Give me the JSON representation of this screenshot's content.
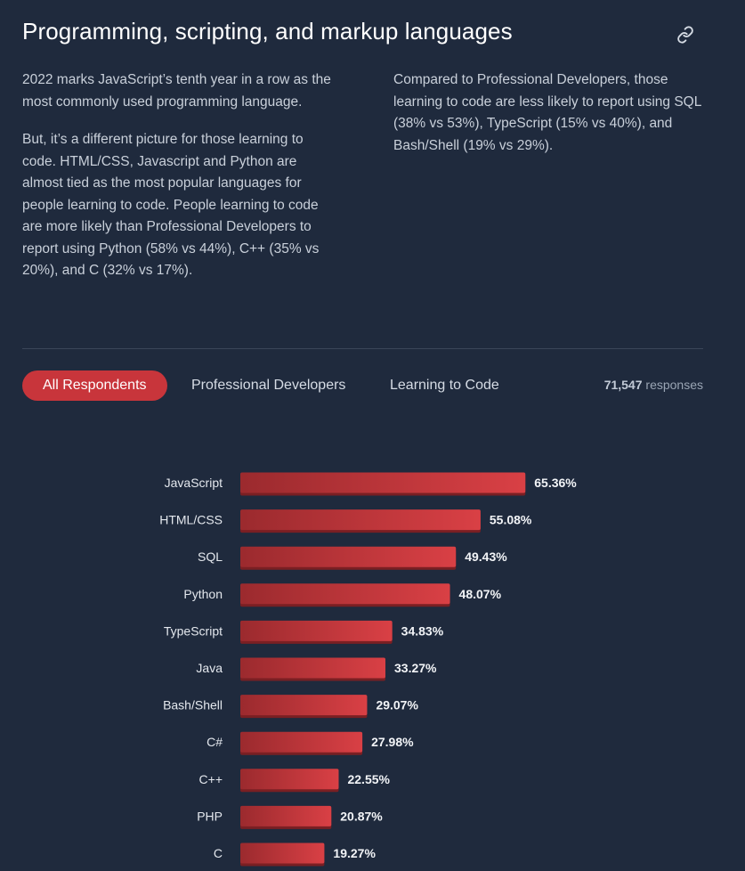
{
  "header": {
    "title": "Programming, scripting, and markup languages"
  },
  "intro": {
    "left_p1": "2022 marks JavaScript’s tenth year in a row as the most commonly used programming language.",
    "left_p2": "But, it’s a different picture for those learning to code. HTML/CSS, Javascript and Python are almost tied as the most popular languages for people learning to code. People learning to code are more likely than Professional Developers to report using Python (58% vs 44%), C++ (35% vs 20%), and C (32% vs 17%).",
    "right_p1": "Compared to Professional Developers, those learning to code are less likely to report using SQL (38% vs 53%), TypeScript (15% vs 40%), and Bash/Shell (19% vs 29%)."
  },
  "tabs": [
    {
      "label": "All Respondents",
      "active": true
    },
    {
      "label": "Professional Developers",
      "active": false
    },
    {
      "label": "Learning to Code",
      "active": false
    }
  ],
  "responses": {
    "count": "71,547",
    "label": "responses"
  },
  "colors": {
    "accent": "#c8353b",
    "bar_start": "#9b2a2e",
    "bar_end": "#d94045",
    "background": "#1f2a3d"
  },
  "chart_data": {
    "type": "bar",
    "orientation": "horizontal",
    "categories": [
      "JavaScript",
      "HTML/CSS",
      "SQL",
      "Python",
      "TypeScript",
      "Java",
      "Bash/Shell",
      "C#",
      "C++",
      "PHP",
      "C"
    ],
    "values": [
      65.36,
      55.08,
      49.43,
      48.07,
      34.83,
      33.27,
      29.07,
      27.98,
      22.55,
      20.87,
      19.27
    ],
    "value_labels": [
      "65.36%",
      "55.08%",
      "49.43%",
      "48.07%",
      "34.83%",
      "33.27%",
      "29.07%",
      "27.98%",
      "22.55%",
      "20.87%",
      "19.27%"
    ],
    "xlim": [
      0,
      100
    ],
    "grid": false,
    "legend": "none"
  }
}
